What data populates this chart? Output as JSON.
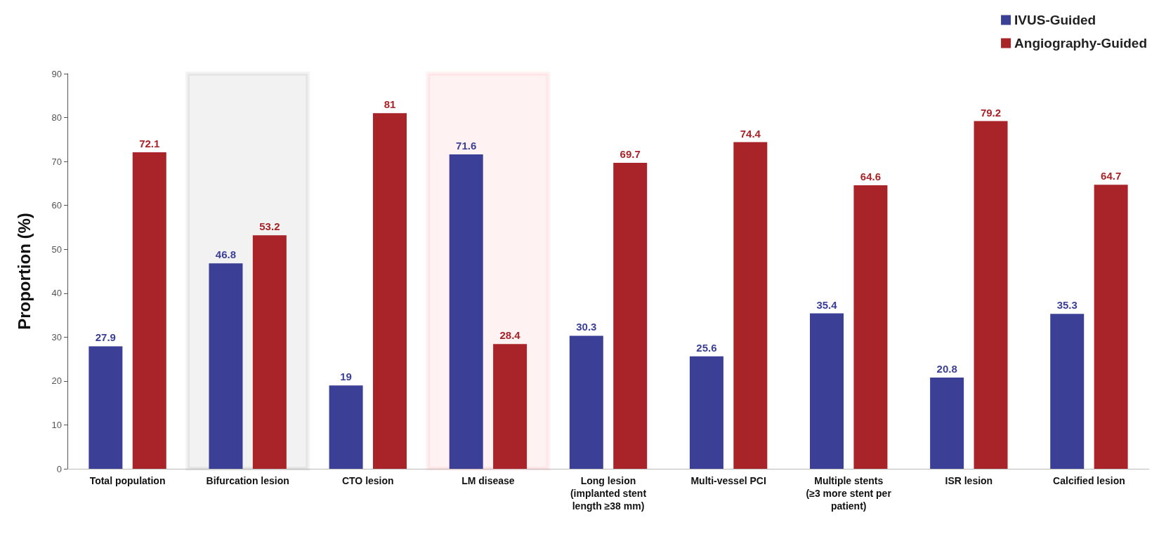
{
  "chart_data": {
    "type": "bar",
    "ylabel": "Proportion (%)",
    "categories": [
      "Total population",
      "Bifurcation lesion",
      "CTO lesion",
      "LM disease",
      "Long lesion\n(implanted stent\nlength ≥38 mm)",
      "Multi-vessel PCI",
      "Multiple stents\n(≥3 more stent per\npatient)",
      "ISR lesion",
      "Calcified lesion"
    ],
    "series": [
      {
        "name": "IVUS-Guided",
        "color": "#3b3f96",
        "values": [
          27.9,
          46.8,
          19,
          71.6,
          30.3,
          25.6,
          35.4,
          20.8,
          35.3
        ]
      },
      {
        "name": "Angiography-Guided",
        "color": "#a82428",
        "values": [
          72.1,
          53.2,
          81,
          28.4,
          69.7,
          74.4,
          64.6,
          79.2,
          64.7
        ]
      }
    ],
    "bands": [
      {
        "axis": "x",
        "from": "Bifurcation lesion",
        "to": "Bifurcation lesion",
        "color": "#000000"
      },
      {
        "axis": "x",
        "from": "LM disease",
        "to": "LM disease",
        "color": "#ff0000"
      }
    ],
    "ylim": [
      0,
      90
    ],
    "yticks": [
      0,
      10,
      20,
      30,
      40,
      50,
      60,
      70,
      80,
      90
    ],
    "grid": false,
    "legend": "top right",
    "data_labels": true
  }
}
